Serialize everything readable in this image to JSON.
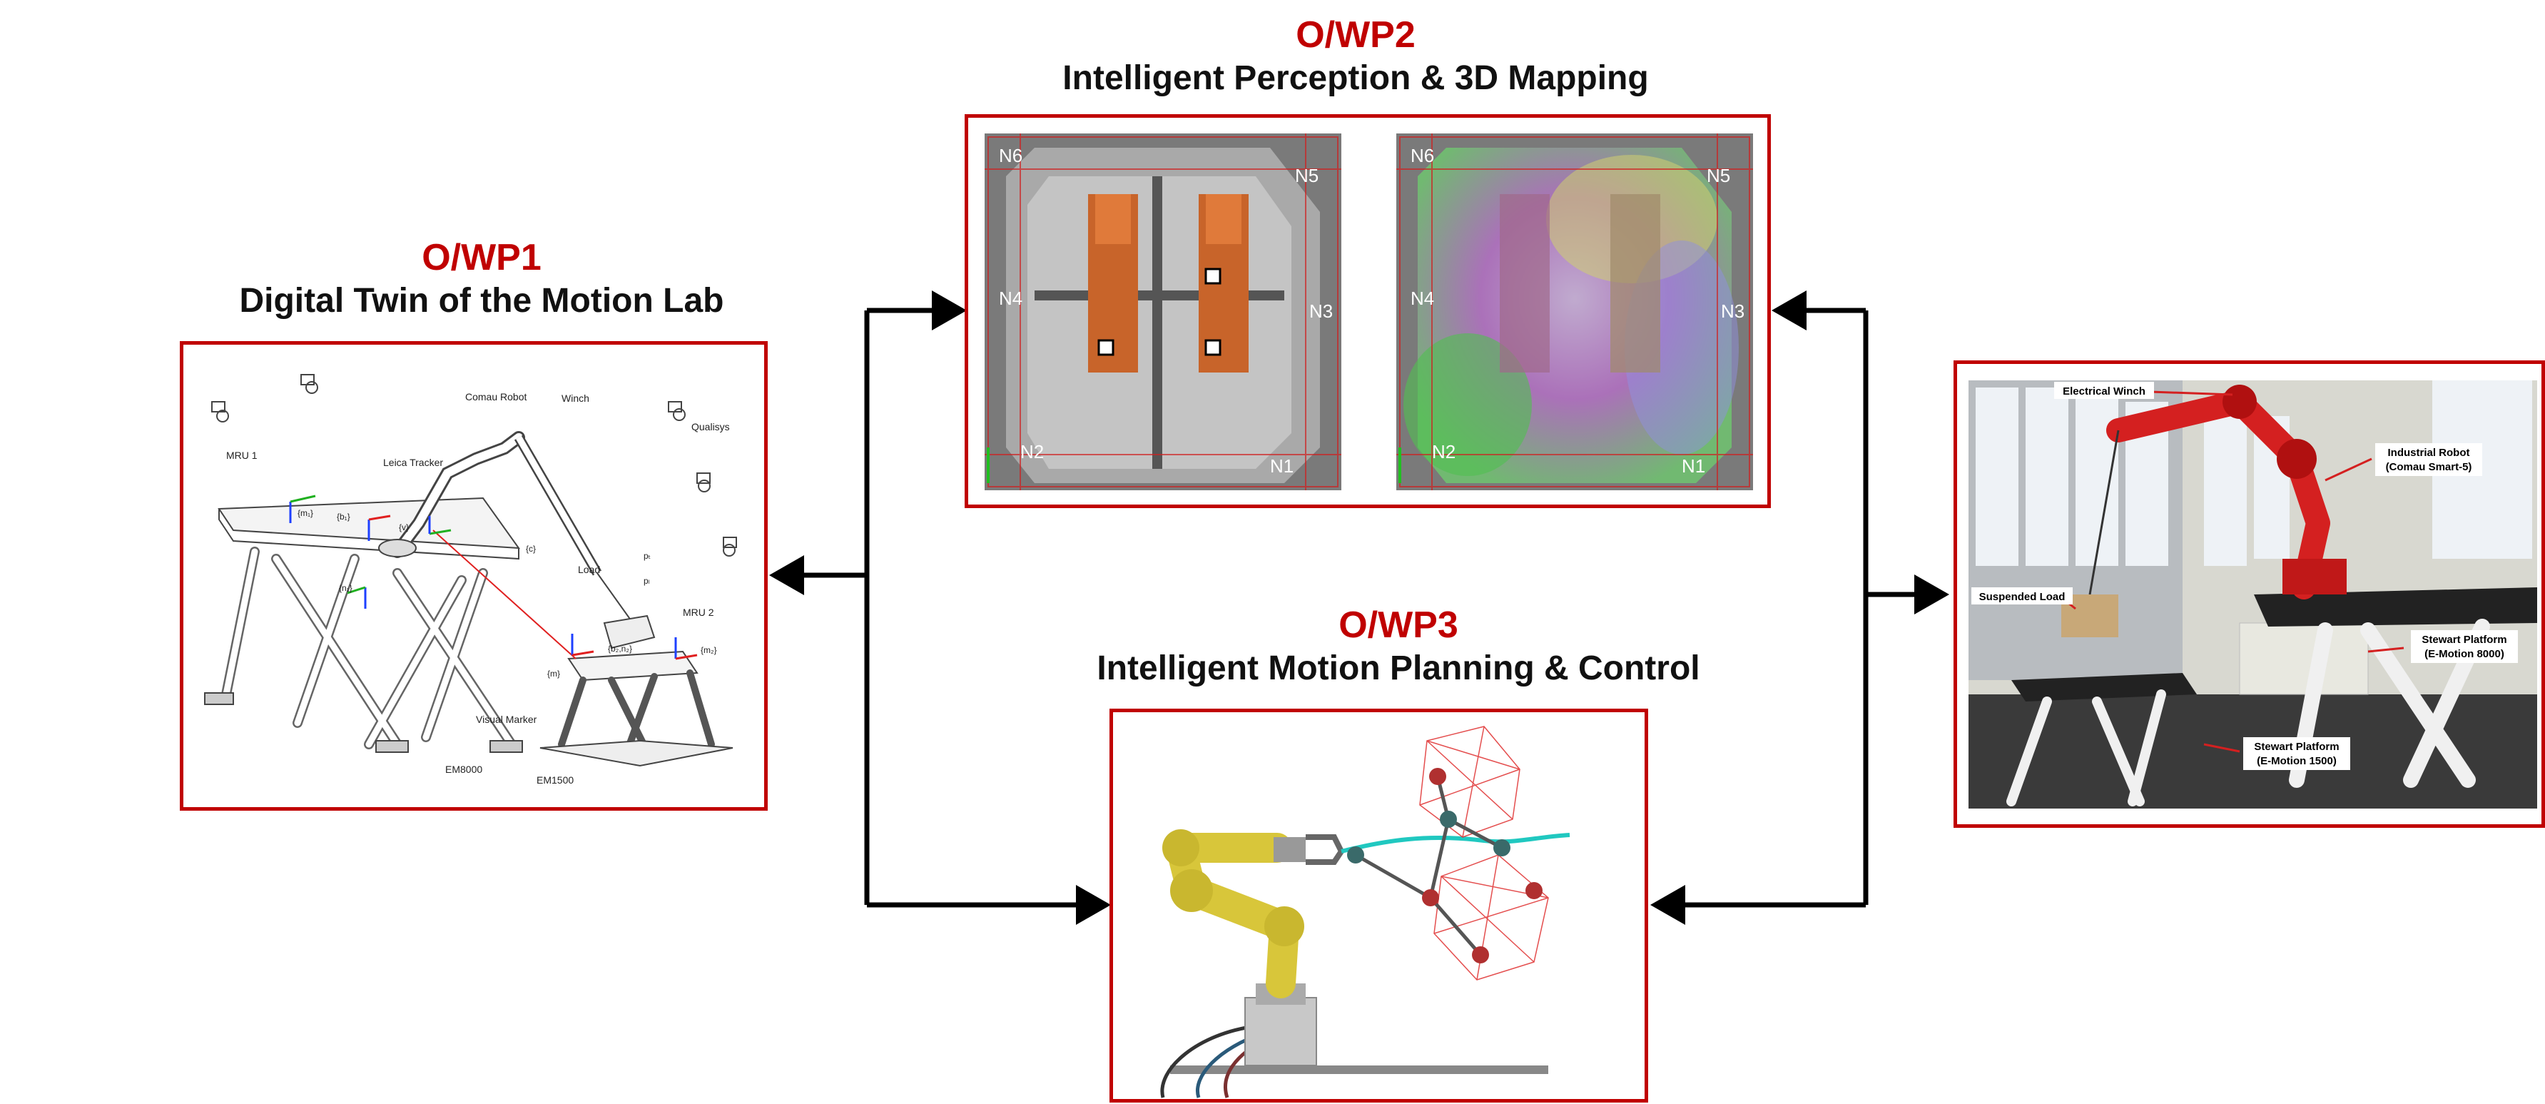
{
  "colors": {
    "accent": "#c00000",
    "arrow": "#000000"
  },
  "wp1": {
    "label": "O/WP1",
    "title": "Digital Twin of the Motion Lab",
    "annotations": {
      "comau": "Comau Robot",
      "winch": "Winch",
      "qualisys": "Qualisys",
      "mru1": "MRU 1",
      "mru2": "MRU 2",
      "leica": "Leica Tracker",
      "load": "Load",
      "visual_marker": "Visual Marker",
      "em8000": "EM8000",
      "em1500": "EM1500",
      "f_m1": "{m₁}",
      "f_b1": "{b₁}",
      "f_v": "{v}",
      "f_c": "{c}",
      "f_n1": "{n₁}",
      "f_m": "{m}",
      "f_b2n2": "{b₂,n₂}",
      "f_m2": "{m₂}",
      "p_t": "pₜ",
      "p_l": "pₗ"
    }
  },
  "wp2": {
    "label": "O/WP2",
    "title": "Intelligent Perception & 3D Mapping",
    "nodes": {
      "n1": "N1",
      "n2": "N2",
      "n3": "N3",
      "n4": "N4",
      "n5": "N5",
      "n6": "N6"
    }
  },
  "wp3": {
    "label": "O/WP3",
    "title": "Intelligent Motion Planning & Control"
  },
  "photo": {
    "labels": {
      "winch": "Electrical Winch",
      "robot_l1": "Industrial Robot",
      "robot_l2": "(Comau Smart-5)",
      "load": "Suspended Load",
      "sp8000_l1": "Stewart Platform",
      "sp8000_l2": "(E-Motion 8000)",
      "sp1500_l1": "Stewart Platform",
      "sp1500_l2": "(E-Motion 1500)"
    }
  }
}
